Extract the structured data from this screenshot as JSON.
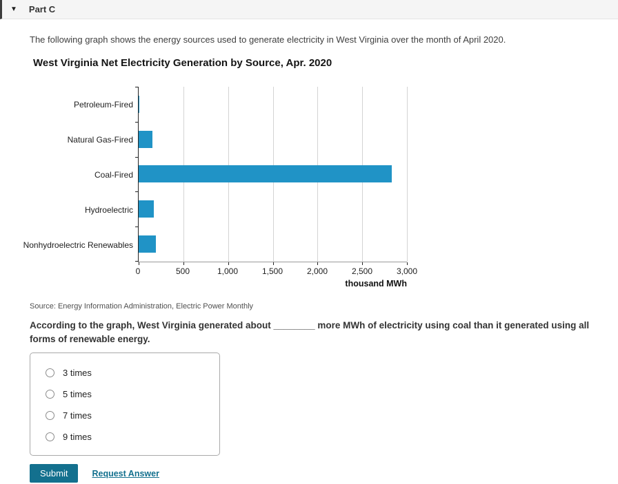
{
  "header": {
    "title": "Part C",
    "collapse_icon": "▼"
  },
  "intro": "The following graph shows the energy sources used to generate electricity in West Virginia over the month of April 2020.",
  "chart_data": {
    "type": "bar",
    "orientation": "horizontal",
    "title": "West Virginia Net Electricity Generation by Source, Apr. 2020",
    "categories": [
      "Petroleum-Fired",
      "Natural Gas-Fired",
      "Coal-Fired",
      "Hydroelectric",
      "Nonhydroelectric Renewables"
    ],
    "values": [
      8,
      155,
      2830,
      170,
      195
    ],
    "xlabel": "thousand MWh",
    "xlim": [
      0,
      3000
    ],
    "xticks": [
      0,
      500,
      1000,
      1500,
      2000,
      2500,
      3000
    ],
    "xtick_labels": [
      "0",
      "500",
      "1,000",
      "1,500",
      "2,000",
      "2,500",
      "3,000"
    ],
    "bar_color": "#2093c6",
    "grid": true,
    "legend": "none"
  },
  "source_note": "Source: Energy Information Administration, Electric Power Monthly",
  "question": "According to the graph, West Virginia generated about ________ more MWh of electricity using coal than it generated using all forms of renewable energy.",
  "options": [
    "3 times",
    "5 times",
    "7 times",
    "9 times"
  ],
  "actions": {
    "submit_label": "Submit",
    "request_answer_label": "Request Answer"
  },
  "colors": {
    "accent_teal": "#13708e",
    "bar_blue": "#2093c6"
  }
}
